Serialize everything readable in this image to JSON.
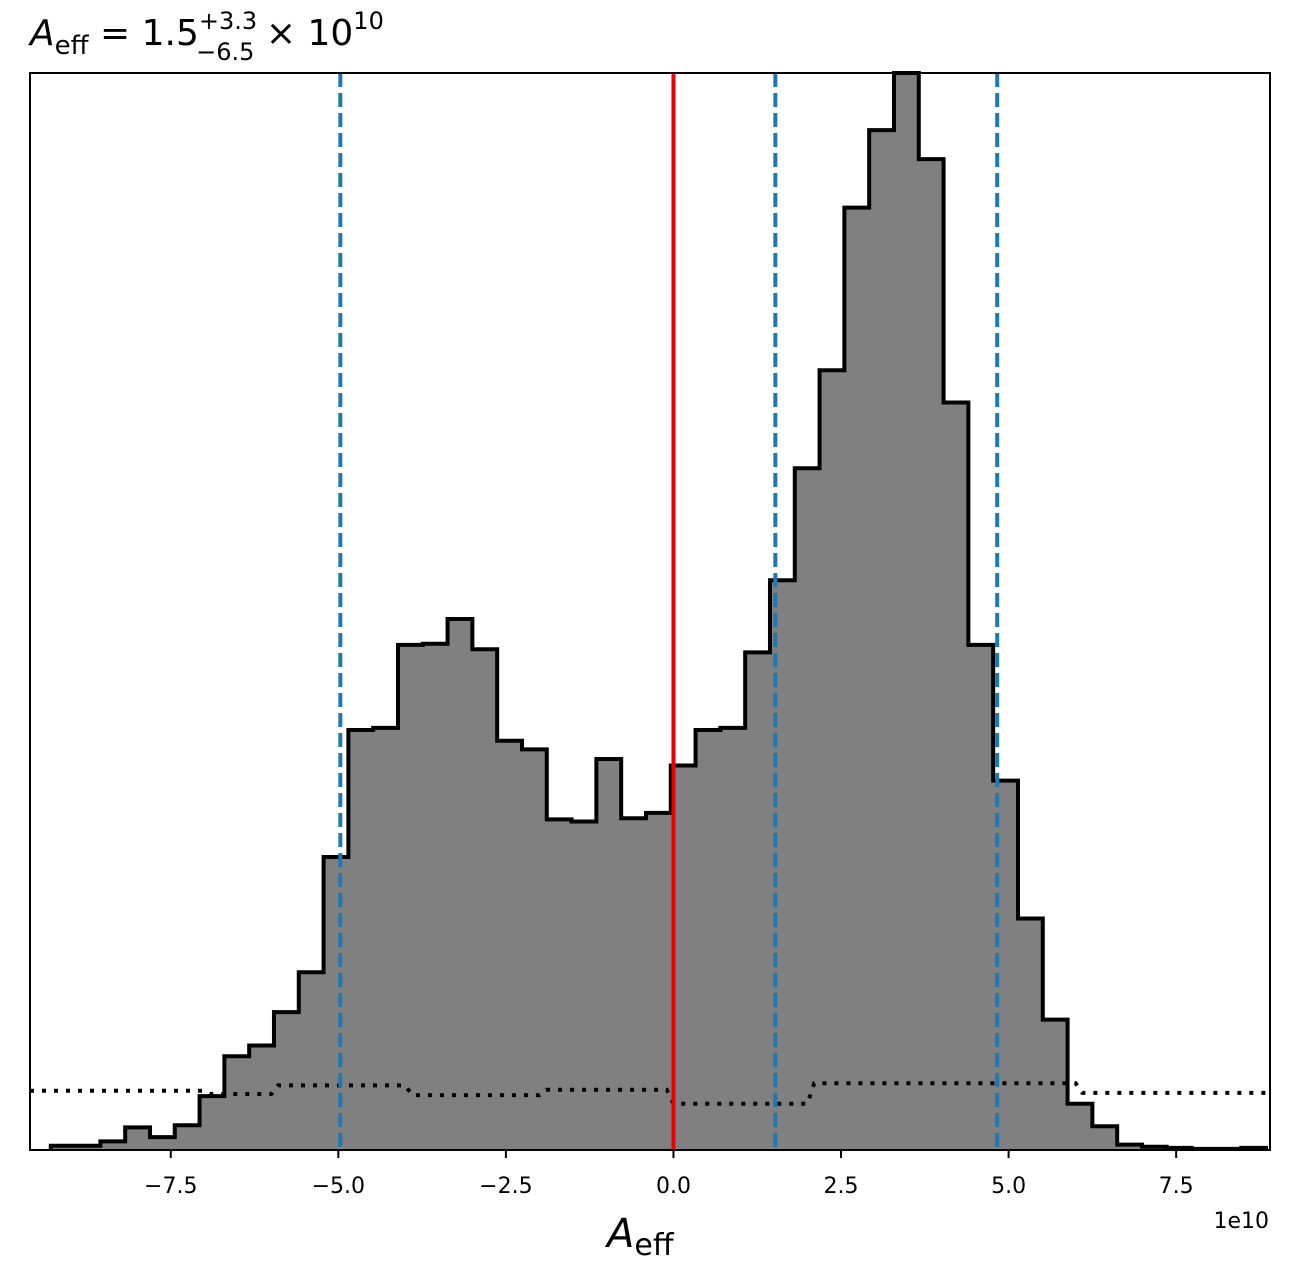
{
  "chart_data": {
    "type": "histogram",
    "title": {
      "symbol": "A",
      "symbol_sub": "eff",
      "equals": " = 1.5",
      "sup": "+3.3",
      "sub": "−6.5",
      "times": " × 10",
      "exp": "10"
    },
    "xlabel": {
      "symbol": "A",
      "sub": "eff"
    },
    "ylabel": "",
    "x_offset_text": "1e10",
    "x_scale": 10000000000.0,
    "xlim": [
      -9.6,
      8.9
    ],
    "ylim": [
      0,
      1.0
    ],
    "xticks": [
      -7.5,
      -5.0,
      -2.5,
      0.0,
      2.5,
      5.0,
      7.5
    ],
    "xtick_labels": [
      "−7.5",
      "−5.0",
      "−2.5",
      "0.0",
      "2.5",
      "5.0",
      "7.5"
    ],
    "bin_edges": [
      -9.29,
      -8.92,
      -8.55,
      -8.18,
      -7.81,
      -7.44,
      -7.07,
      -6.7,
      -6.33,
      -5.96,
      -5.59,
      -5.22,
      -4.85,
      -4.48,
      -4.11,
      -3.74,
      -3.37,
      -3.0,
      -2.63,
      -2.26,
      -1.89,
      -1.52,
      -1.15,
      -0.78,
      -0.41,
      -0.04,
      0.33,
      0.7,
      1.07,
      1.44,
      1.81,
      2.18,
      2.55,
      2.92,
      3.29,
      3.66,
      4.03,
      4.4,
      4.77,
      5.14,
      5.51,
      5.88,
      6.25,
      6.62,
      6.99,
      7.36,
      7.73,
      8.1,
      8.47,
      8.84
    ],
    "bin_heights": [
      0.004,
      0.004,
      0.008,
      0.021,
      0.012,
      0.023,
      0.05,
      0.087,
      0.097,
      0.128,
      0.165,
      0.272,
      0.39,
      0.392,
      0.469,
      0.47,
      0.493,
      0.465,
      0.38,
      0.372,
      0.307,
      0.305,
      0.363,
      0.308,
      0.313,
      0.357,
      0.39,
      0.392,
      0.462,
      0.529,
      0.633,
      0.724,
      0.875,
      0.947,
      1.0,
      0.92,
      0.694,
      0.469,
      0.343,
      0.215,
      0.121,
      0.043,
      0.022,
      0.005,
      0.003,
      0.002,
      0.001,
      0.001,
      0.002
    ],
    "prior_line": {
      "style": "dotted",
      "color": "#000000",
      "x": [
        -9.6,
        -7.0,
        -6.9,
        -6.0,
        -5.9,
        -4.0,
        -3.9,
        -2.0,
        -1.9,
        -0.1,
        0.0,
        2.0,
        2.1,
        6.0,
        6.1,
        8.9
      ],
      "y": [
        0.055,
        0.055,
        0.052,
        0.052,
        0.06,
        0.06,
        0.051,
        0.051,
        0.056,
        0.056,
        0.043,
        0.043,
        0.062,
        0.062,
        0.053,
        0.053
      ]
    },
    "vlines": [
      {
        "name": "truth",
        "x": 0.0,
        "color": "#ee0000",
        "style": "solid"
      },
      {
        "name": "lower",
        "x": -4.97,
        "color": "#1f77b4",
        "style": "dashed"
      },
      {
        "name": "median",
        "x": 1.52,
        "color": "#1f77b4",
        "style": "dashed"
      },
      {
        "name": "upper",
        "x": 4.83,
        "color": "#1f77b4",
        "style": "dashed"
      }
    ],
    "fill_color": "#808080",
    "edge_color": "#000000"
  }
}
